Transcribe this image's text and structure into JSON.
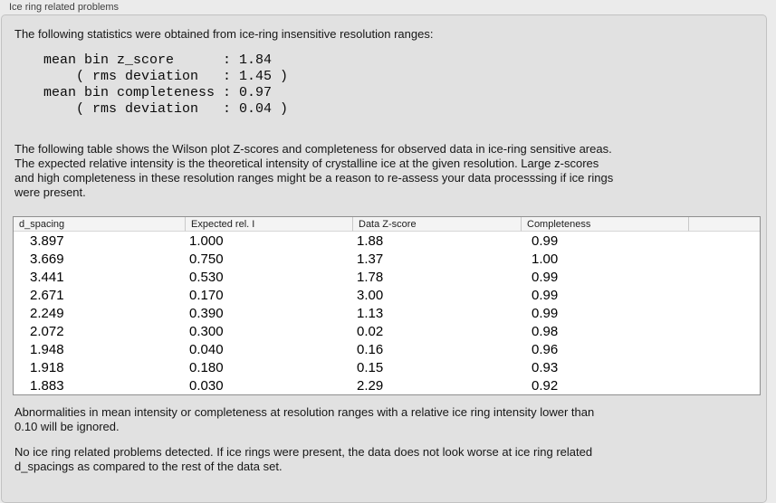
{
  "panel": {
    "title": "Ice ring related problems"
  },
  "intro_text": "The following statistics were obtained from ice-ring insensitive resolution ranges:",
  "stats_block": "mean bin z_score      : 1.84\n    ( rms deviation   : 1.45 )\nmean bin completeness : 0.97\n    ( rms deviation   : 0.04 )",
  "statistics": {
    "mean_bin_z_score": "1.84",
    "z_score_rms_deviation": "1.45",
    "mean_bin_completeness": "0.97",
    "completeness_rms_deviation": "0.04"
  },
  "table_intro_text": "The following table shows the Wilson plot Z-scores and completeness for observed data in ice-ring sensitive areas.\nThe expected relative intensity is the theoretical intensity of crystalline ice at the given resolution. Large z-scores\nand high completeness in these resolution ranges might be a reason to re-assess your data processsing if ice rings\nwere present.",
  "table": {
    "columns": [
      "d_spacing",
      "Expected rel. I",
      "Data Z-score",
      "Completeness"
    ],
    "rows": [
      [
        "3.897",
        "1.000",
        "1.88",
        "0.99"
      ],
      [
        "3.669",
        "0.750",
        "1.37",
        "1.00"
      ],
      [
        "3.441",
        "0.530",
        "1.78",
        "0.99"
      ],
      [
        "2.671",
        "0.170",
        "3.00",
        "0.99"
      ],
      [
        "2.249",
        "0.390",
        "1.13",
        "0.99"
      ],
      [
        "2.072",
        "0.300",
        "0.02",
        "0.98"
      ],
      [
        "1.948",
        "0.040",
        "0.16",
        "0.96"
      ],
      [
        "1.918",
        "0.180",
        "0.15",
        "0.93"
      ],
      [
        "1.883",
        "0.030",
        "2.29",
        "0.92"
      ]
    ]
  },
  "ignore_note_text": "Abnormalities in mean intensity or completeness at resolution ranges with a relative ice ring intensity lower than\n0.10 will be ignored.",
  "conclusion_text": "No ice ring related problems detected. If ice rings were present, the data does not look worse at ice ring related\nd_spacings as compared to the rest of the data set.",
  "colors": {
    "page_background": "#ebebeb",
    "groupbox_background": "#e1e1e1",
    "groupbox_border": "#c2c2c2",
    "table_background": "#ffffff",
    "table_border": "#8f8f8f",
    "table_header_background": "#f4f4f4",
    "text": "#141414"
  }
}
